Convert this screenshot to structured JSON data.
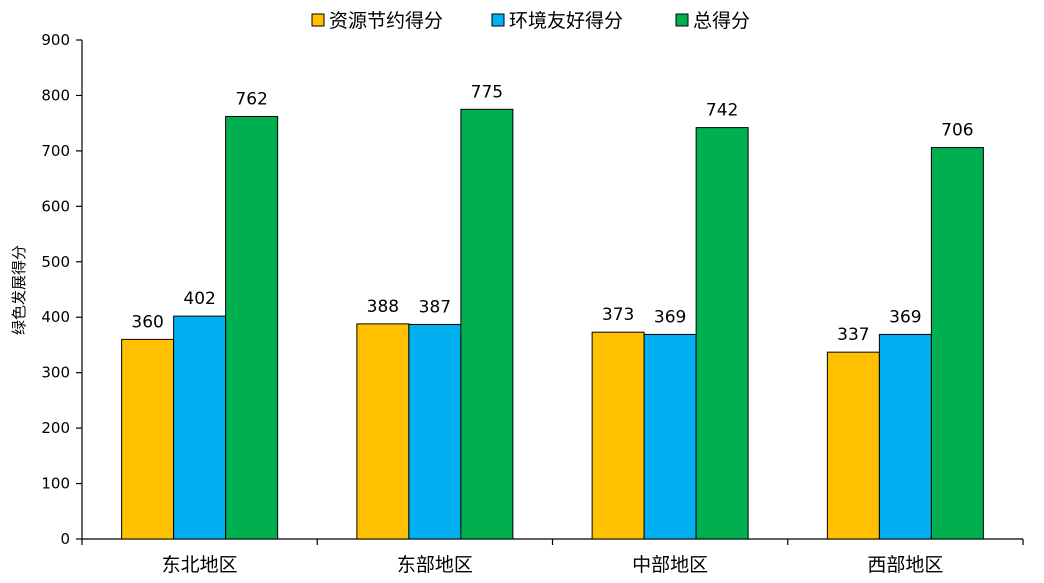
{
  "chart_data": {
    "type": "bar",
    "title": "",
    "xlabel": "",
    "ylabel": "绿色发展得分",
    "ylim": [
      0,
      900
    ],
    "yticks": [
      0,
      100,
      200,
      300,
      400,
      500,
      600,
      700,
      800,
      900
    ],
    "grid": false,
    "legend_position": "top",
    "categories": [
      "东北地区",
      "东部地区",
      "中部地区",
      "西部地区"
    ],
    "series": [
      {
        "name": "资源节约得分",
        "color": "#FFC000",
        "values": [
          360,
          388,
          373,
          337
        ]
      },
      {
        "name": "环境友好得分",
        "color": "#00B0F0",
        "values": [
          402,
          387,
          369,
          369
        ]
      },
      {
        "name": "总得分",
        "color": "#00B050",
        "values": [
          762,
          775,
          742,
          706
        ]
      }
    ]
  }
}
